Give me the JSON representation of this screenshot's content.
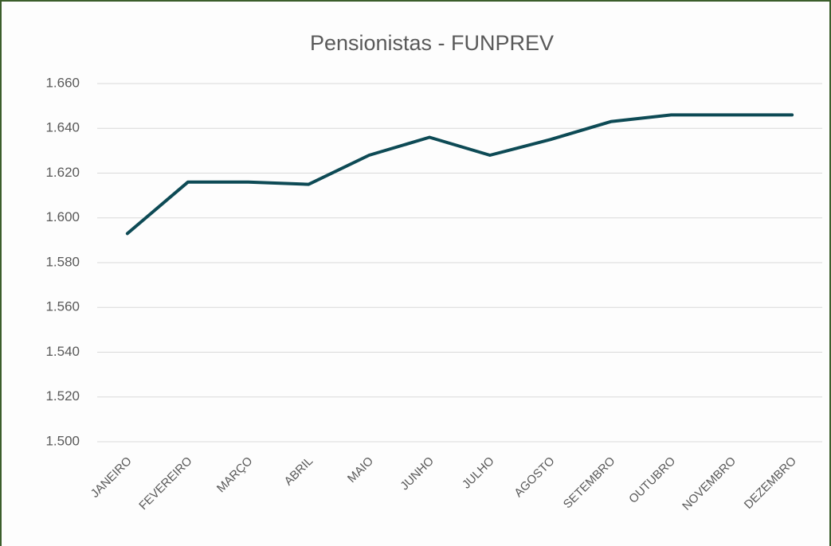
{
  "chart_data": {
    "type": "line",
    "title": "Pensionistas - FUNPREV",
    "categories": [
      "JANEIRO",
      "FEVEREIRO",
      "MARÇO",
      "ABRIL",
      "MAIO",
      "JUNHO",
      "JULHO",
      "AGOSTO",
      "SETEMBRO",
      "OUTUBRO",
      "NOVEMBRO",
      "DEZEMBRO"
    ],
    "values": [
      1593,
      1616,
      1616,
      1615,
      1628,
      1636,
      1628,
      1635,
      1643,
      1646,
      1646,
      1646
    ],
    "color": "#0d4a55",
    "ylim": [
      1500,
      1660
    ],
    "yticks": [
      {
        "value": 1500,
        "label": "1.500"
      },
      {
        "value": 1520,
        "label": "1.520"
      },
      {
        "value": 1540,
        "label": "1.540"
      },
      {
        "value": 1560,
        "label": "1.560"
      },
      {
        "value": 1580,
        "label": "1.580"
      },
      {
        "value": 1600,
        "label": "1.600"
      },
      {
        "value": 1620,
        "label": "1.620"
      },
      {
        "value": 1640,
        "label": "1.640"
      },
      {
        "value": 1660,
        "label": "1.660"
      }
    ],
    "grid": true
  }
}
